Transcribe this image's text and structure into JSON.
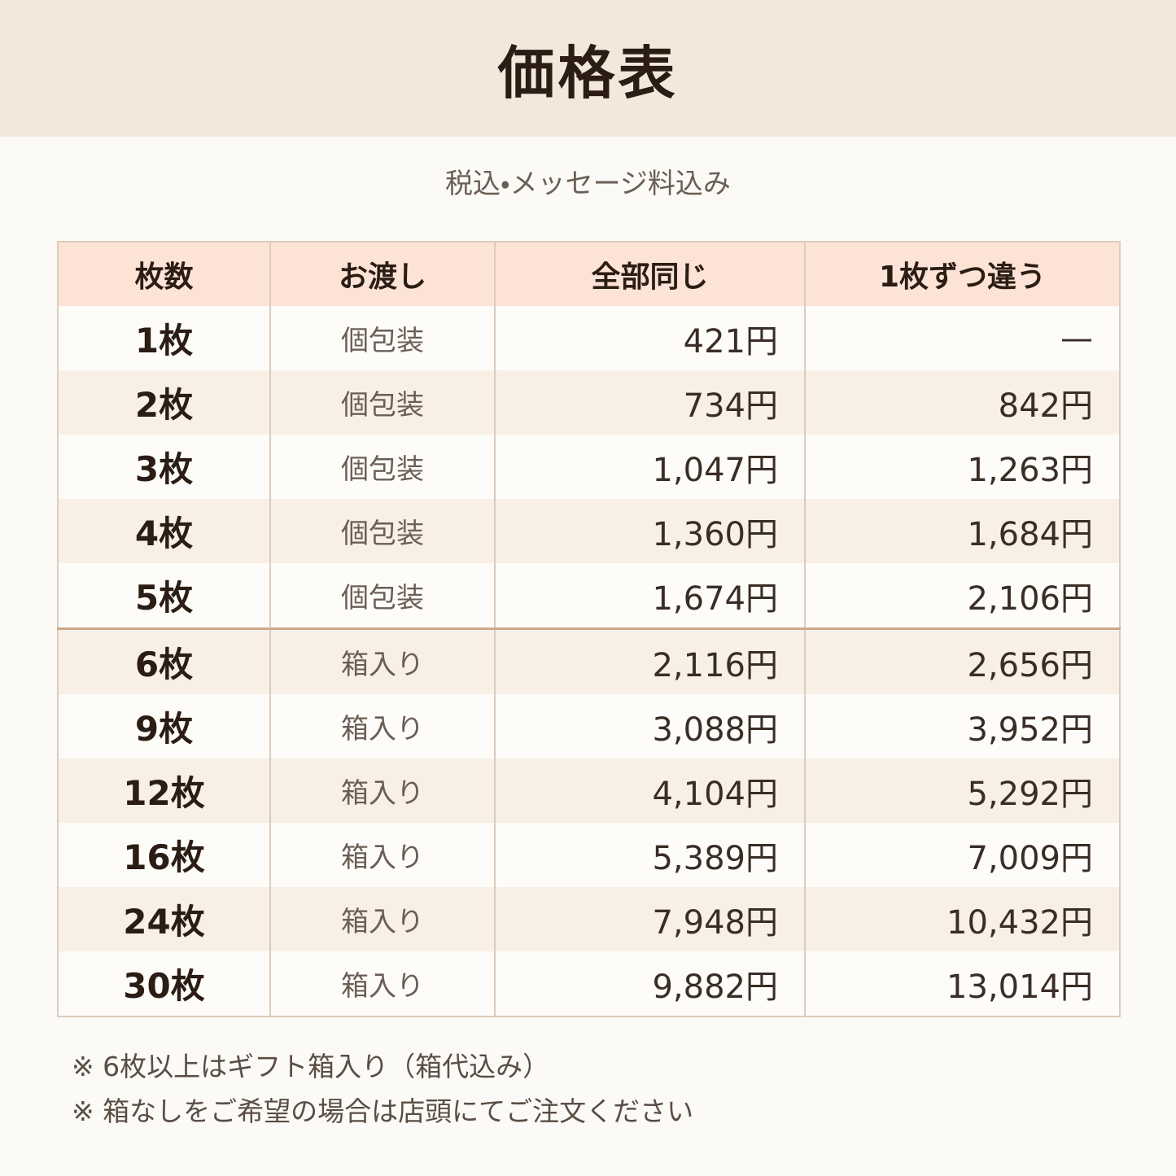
{
  "header": {
    "title": "価格表"
  },
  "subtitle": "税込・メッセージ料込み",
  "table": {
    "headers": [
      "枚数",
      "お渡し",
      "全部同じ",
      "1枚ずつ違う"
    ],
    "rows": [
      [
        "1枚",
        "個包装",
        "421円",
        "—"
      ],
      [
        "2枚",
        "個包装",
        "734円",
        "842円"
      ],
      [
        "3枚",
        "個包装",
        "1,047円",
        "1,263円"
      ],
      [
        "4枚",
        "個包装",
        "1,360円",
        "1,684円"
      ],
      [
        "5枚",
        "個包装",
        "1,674円",
        "2,106円"
      ],
      [
        "6枚",
        "箱入り",
        "2,116円",
        "2,656円"
      ],
      [
        "9枚",
        "箱入り",
        "3,088円",
        "3,952円"
      ],
      [
        "12枚",
        "箱入り",
        "4,104円",
        "5,292円"
      ],
      [
        "16枚",
        "箱入り",
        "5,389円",
        "7,009円"
      ],
      [
        "24枚",
        "箱入り",
        "7,948円",
        "10,432円"
      ],
      [
        "30枚",
        "箱入り",
        "9,882円",
        "13,014円"
      ]
    ]
  },
  "notes": [
    "※ 6枚以上はギフト箱入り（箱代込み）",
    "※ 箱なしをご希望の場合は店頭にてご注文ください"
  ]
}
